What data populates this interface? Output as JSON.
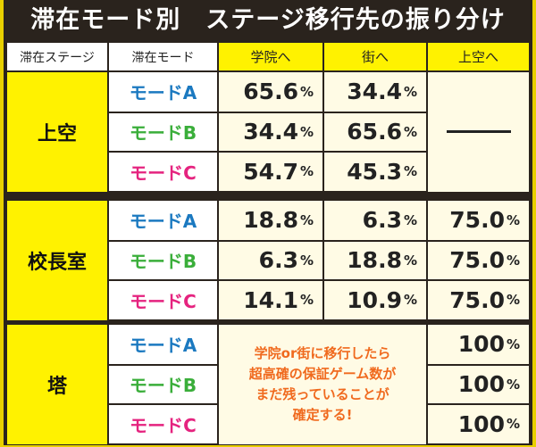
{
  "title": "滞在モード別　ステージ移行先の振り分け",
  "headers": [
    "滞在ステージ",
    "滞在モード",
    "学院へ",
    "街へ",
    "上空へ"
  ],
  "percent_sign": "%",
  "groups": [
    {
      "stage": "上空",
      "rows": [
        {
          "mode": "モードA",
          "gakuin": "65.6",
          "machi": "34.4"
        },
        {
          "mode": "モードB",
          "gakuin": "34.4",
          "machi": "65.6"
        },
        {
          "mode": "モードC",
          "gakuin": "54.7",
          "machi": "45.3"
        }
      ],
      "joku": "—"
    },
    {
      "stage": "校長室",
      "rows": [
        {
          "mode": "モードA",
          "gakuin": "18.8",
          "machi": "6.3",
          "joku": "75.0"
        },
        {
          "mode": "モードB",
          "gakuin": "6.3",
          "machi": "18.8",
          "joku": "75.0"
        },
        {
          "mode": "モードC",
          "gakuin": "14.1",
          "machi": "10.9",
          "joku": "75.0"
        }
      ]
    },
    {
      "stage": "塔",
      "rows": [
        {
          "mode": "モードA",
          "joku": "100"
        },
        {
          "mode": "モードB",
          "joku": "100"
        },
        {
          "mode": "モードC",
          "joku": "100"
        }
      ],
      "note": [
        "学院or街に移行したら",
        "超高確の保証ゲーム数が",
        "まだ残っていることが",
        "確定する!"
      ]
    }
  ],
  "colors": {
    "mode_a": "#1b79c0",
    "mode_b": "#3aae3a",
    "mode_c": "#e5237f",
    "note": "#f06a1e",
    "stage_bg": "#fff200"
  }
}
